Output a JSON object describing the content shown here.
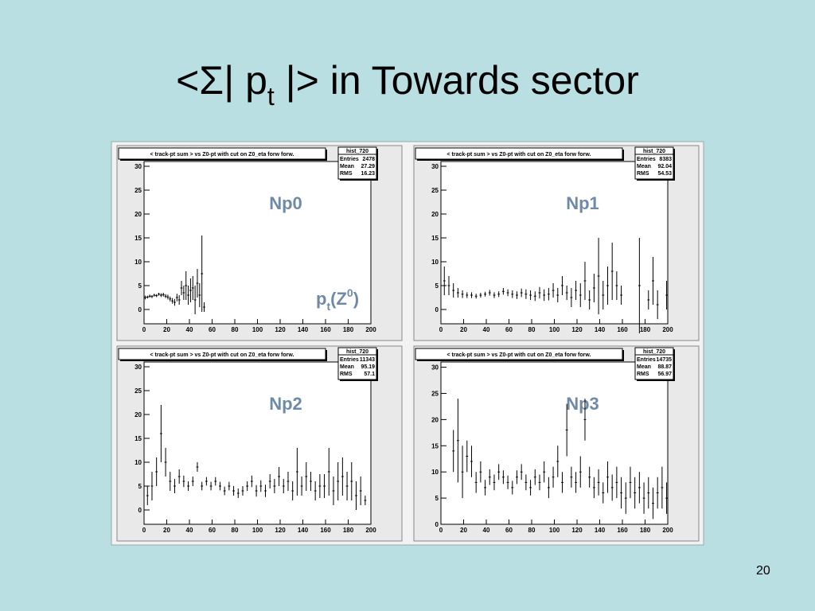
{
  "slide_title": [
    "<Σ| p",
    "t",
    " |> in Towards sector"
  ],
  "page_number": "20",
  "chart_data": [
    {
      "type": "profile",
      "title": "< track-pt sum > vs Z0-pt with cut on Z0_eta forw  forw.",
      "stats": {
        "name": "hist_720",
        "labels": [
          "Entries",
          "Mean",
          "RMS"
        ],
        "values": [
          2478,
          27.29,
          16.23
        ]
      },
      "annotation": "Np0",
      "xlabel": [
        "p",
        "t",
        "(Z",
        "0",
        ")"
      ],
      "color": "#000000",
      "xlim": [
        0,
        200
      ],
      "ylim": [
        -3,
        31
      ],
      "xticks": [
        0,
        20,
        40,
        60,
        80,
        100,
        120,
        140,
        160,
        180,
        200
      ],
      "yticks": [
        0,
        5,
        10,
        15,
        20,
        25,
        30
      ],
      "x": [
        1,
        3,
        5,
        7,
        9,
        11,
        13,
        15,
        17,
        19,
        21,
        23,
        25,
        27,
        29,
        31,
        33,
        35,
        37,
        39,
        41,
        43,
        45,
        47,
        49,
        51,
        53
      ],
      "values": [
        2.5,
        2.6,
        2.8,
        2.7,
        3.0,
        2.9,
        3.2,
        3.0,
        3.1,
        2.8,
        2.6,
        2.2,
        1.8,
        1.5,
        2.5,
        2.0,
        4.5,
        3.5,
        5.0,
        3.0,
        4.0,
        4.5,
        2.0,
        5.5,
        3.0,
        7.5,
        0.5
      ],
      "errors": [
        0.4,
        0.3,
        0.3,
        0.3,
        0.3,
        0.3,
        0.3,
        0.4,
        0.4,
        0.4,
        0.5,
        0.5,
        0.6,
        0.7,
        0.8,
        1.0,
        1.5,
        1.5,
        3.0,
        2.0,
        2.5,
        2.5,
        3.0,
        3.0,
        2.5,
        8.0,
        1.0
      ]
    },
    {
      "type": "profile",
      "title": "< track-pt sum > vs Z0-pt with cut on Z0_eta forw  forw.",
      "stats": {
        "name": "hist_720",
        "labels": [
          "Entries",
          "Mean",
          "RMS"
        ],
        "values": [
          8383,
          92.04,
          54.53
        ]
      },
      "annotation": "Np1",
      "color": "#000000",
      "xlim": [
        0,
        200
      ],
      "ylim": [
        -3,
        31
      ],
      "xticks": [
        0,
        20,
        40,
        60,
        80,
        100,
        120,
        140,
        160,
        180,
        200
      ],
      "yticks": [
        0,
        5,
        10,
        15,
        20,
        25,
        30
      ],
      "x": [
        3,
        7,
        11,
        15,
        19,
        23,
        27,
        31,
        35,
        39,
        43,
        47,
        51,
        55,
        59,
        63,
        67,
        71,
        75,
        79,
        83,
        87,
        91,
        95,
        99,
        103,
        107,
        111,
        115,
        119,
        123,
        127,
        131,
        135,
        139,
        143,
        147,
        151,
        155,
        159,
        175,
        183,
        187,
        191,
        199
      ],
      "values": [
        6,
        5,
        4,
        3.5,
        3.2,
        3,
        3,
        2.8,
        3,
        3.2,
        3.5,
        3,
        3.2,
        3.8,
        3.5,
        3.2,
        3,
        3.5,
        3.2,
        3,
        2.8,
        3.5,
        3,
        3.2,
        4,
        3,
        5,
        3.5,
        2.5,
        4,
        3,
        6,
        2,
        4.5,
        7,
        3,
        5,
        8,
        5,
        3,
        5,
        2,
        6,
        1,
        3
      ],
      "errors": [
        3,
        2,
        1.5,
        1,
        0.8,
        0.6,
        0.6,
        0.5,
        0.5,
        0.5,
        0.6,
        0.6,
        0.6,
        0.7,
        0.7,
        0.8,
        0.8,
        0.9,
        1,
        1,
        1,
        1.2,
        1.2,
        1.3,
        1.5,
        1.5,
        2,
        1.5,
        2,
        2,
        2.5,
        4,
        2,
        3,
        8,
        3,
        4,
        6,
        3,
        2,
        10,
        2,
        5,
        3,
        3
      ]
    },
    {
      "type": "profile",
      "title": "< track-pt sum > vs Z0-pt with cut on Z0_eta forw  forw.",
      "stats": {
        "name": "hist_720",
        "labels": [
          "Entries",
          "Mean",
          "RMS"
        ],
        "values": [
          11343,
          95.19,
          57.1
        ]
      },
      "annotation": "Np2",
      "color": "#000000",
      "xlim": [
        0,
        200
      ],
      "ylim": [
        -3,
        31
      ],
      "xticks": [
        0,
        20,
        40,
        60,
        80,
        100,
        120,
        140,
        160,
        180,
        200
      ],
      "yticks": [
        0,
        5,
        10,
        15,
        20,
        25,
        30
      ],
      "x": [
        3,
        7,
        11,
        15,
        19,
        23,
        27,
        31,
        35,
        39,
        43,
        47,
        51,
        55,
        59,
        63,
        67,
        71,
        75,
        79,
        83,
        87,
        91,
        95,
        99,
        103,
        107,
        111,
        115,
        119,
        123,
        127,
        131,
        135,
        139,
        143,
        147,
        151,
        155,
        159,
        163,
        167,
        171,
        175,
        179,
        183,
        187,
        191,
        195
      ],
      "values": [
        3,
        5,
        8,
        16,
        10,
        6,
        5,
        7,
        6,
        5,
        6,
        9,
        5,
        6,
        5,
        6,
        5,
        4,
        5,
        4,
        3.5,
        4,
        5,
        6,
        4,
        5,
        4,
        6,
        5,
        7,
        5,
        6,
        4,
        8,
        5,
        7,
        6,
        4,
        5,
        5,
        8,
        4,
        6,
        7,
        5,
        6,
        3,
        4,
        2
      ],
      "errors": [
        2,
        3,
        3,
        6,
        3,
        2,
        1.5,
        1.5,
        1.2,
        1,
        1,
        1,
        0.9,
        0.9,
        0.9,
        0.9,
        0.9,
        0.9,
        0.9,
        1,
        1,
        1,
        1,
        1.2,
        1.2,
        1.2,
        1.3,
        1.5,
        1.5,
        2,
        1.5,
        2,
        2,
        5,
        2,
        3,
        2,
        2,
        2.5,
        2.5,
        5,
        3,
        4,
        4,
        3,
        4,
        3,
        3,
        1
      ]
    },
    {
      "type": "profile",
      "title": "< track-pt sum > vs Z0-pt with cut on Z0_eta forw  forw.",
      "stats": {
        "name": "hist_720",
        "labels": [
          "Entries",
          "Mean",
          "RMS"
        ],
        "values": [
          14735,
          88.87,
          56.97
        ]
      },
      "annotation": "Np3",
      "color": "#000000",
      "xlim": [
        0,
        200
      ],
      "ylim": [
        0,
        31
      ],
      "xticks": [
        0,
        20,
        40,
        60,
        80,
        100,
        120,
        140,
        160,
        180,
        200
      ],
      "yticks": [
        0,
        5,
        10,
        15,
        20,
        25,
        30
      ],
      "x": [
        11,
        15,
        19,
        23,
        27,
        31,
        35,
        39,
        43,
        47,
        51,
        55,
        59,
        63,
        67,
        71,
        75,
        79,
        83,
        87,
        91,
        95,
        99,
        103,
        107,
        111,
        115,
        119,
        123,
        127,
        131,
        135,
        139,
        143,
        147,
        151,
        155,
        159,
        163,
        167,
        171,
        175,
        179,
        183,
        187,
        191,
        195,
        199
      ],
      "values": [
        14,
        16,
        10,
        13,
        12,
        8,
        10,
        7,
        9,
        8,
        10,
        9,
        8,
        7,
        9,
        10,
        8,
        7,
        9,
        8,
        10,
        7,
        9,
        12,
        8,
        18,
        9,
        8,
        10,
        20,
        9,
        7,
        8,
        6,
        9,
        7,
        8,
        6,
        5,
        8,
        6,
        7,
        5,
        6,
        4,
        6,
        7,
        5
      ],
      "errors": [
        4,
        8,
        5,
        3,
        3,
        2,
        2,
        1.5,
        1.5,
        1.5,
        1.5,
        1.3,
        1.3,
        1.3,
        1.3,
        1.5,
        1.5,
        1.5,
        1.5,
        1.5,
        2,
        2,
        2,
        3,
        2,
        5,
        2,
        2,
        3,
        4,
        2,
        2,
        2.5,
        2,
        3,
        2.5,
        3,
        3,
        3,
        3,
        3,
        3,
        3,
        3,
        3,
        3,
        4,
        3
      ]
    }
  ]
}
